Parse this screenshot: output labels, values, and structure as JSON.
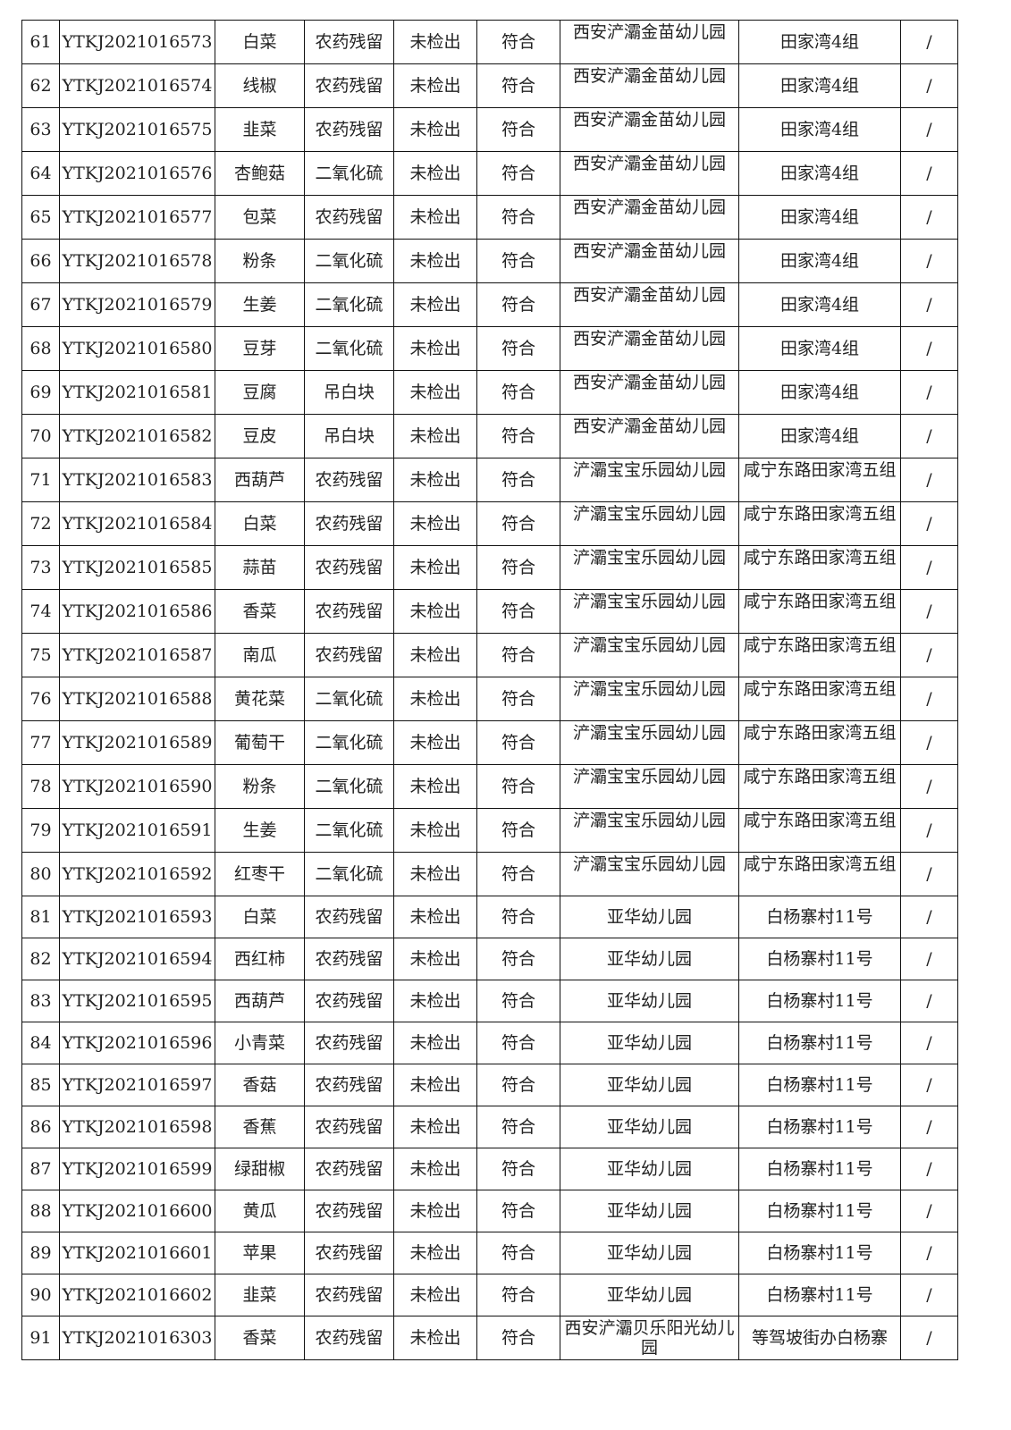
{
  "table": {
    "rows": [
      [
        "61",
        "YTKJ2021016573",
        "白菜",
        "农药残留",
        "未检出",
        "符合",
        "西安浐灞金苗幼儿园",
        "田家湾4组",
        "/"
      ],
      [
        "62",
        "YTKJ2021016574",
        "线椒",
        "农药残留",
        "未检出",
        "符合",
        "西安浐灞金苗幼儿园",
        "田家湾4组",
        "/"
      ],
      [
        "63",
        "YTKJ2021016575",
        "韭菜",
        "农药残留",
        "未检出",
        "符合",
        "西安浐灞金苗幼儿园",
        "田家湾4组",
        "/"
      ],
      [
        "64",
        "YTKJ2021016576",
        "杏鲍菇",
        "二氧化硫",
        "未检出",
        "符合",
        "西安浐灞金苗幼儿园",
        "田家湾4组",
        "/"
      ],
      [
        "65",
        "YTKJ2021016577",
        "包菜",
        "农药残留",
        "未检出",
        "符合",
        "西安浐灞金苗幼儿园",
        "田家湾4组",
        "/"
      ],
      [
        "66",
        "YTKJ2021016578",
        "粉条",
        "二氧化硫",
        "未检出",
        "符合",
        "西安浐灞金苗幼儿园",
        "田家湾4组",
        "/"
      ],
      [
        "67",
        "YTKJ2021016579",
        "生姜",
        "二氧化硫",
        "未检出",
        "符合",
        "西安浐灞金苗幼儿园",
        "田家湾4组",
        "/"
      ],
      [
        "68",
        "YTKJ2021016580",
        "豆芽",
        "二氧化硫",
        "未检出",
        "符合",
        "西安浐灞金苗幼儿园",
        "田家湾4组",
        "/"
      ],
      [
        "69",
        "YTKJ2021016581",
        "豆腐",
        "吊白块",
        "未检出",
        "符合",
        "西安浐灞金苗幼儿园",
        "田家湾4组",
        "/"
      ],
      [
        "70",
        "YTKJ2021016582",
        "豆皮",
        "吊白块",
        "未检出",
        "符合",
        "西安浐灞金苗幼儿园",
        "田家湾4组",
        "/"
      ],
      [
        "71",
        "YTKJ2021016583",
        "西葫芦",
        "农药残留",
        "未检出",
        "符合",
        "浐灞宝宝乐园幼儿园",
        "咸宁东路田家湾五组",
        "/"
      ],
      [
        "72",
        "YTKJ2021016584",
        "白菜",
        "农药残留",
        "未检出",
        "符合",
        "浐灞宝宝乐园幼儿园",
        "咸宁东路田家湾五组",
        "/"
      ],
      [
        "73",
        "YTKJ2021016585",
        "蒜苗",
        "农药残留",
        "未检出",
        "符合",
        "浐灞宝宝乐园幼儿园",
        "咸宁东路田家湾五组",
        "/"
      ],
      [
        "74",
        "YTKJ2021016586",
        "香菜",
        "农药残留",
        "未检出",
        "符合",
        "浐灞宝宝乐园幼儿园",
        "咸宁东路田家湾五组",
        "/"
      ],
      [
        "75",
        "YTKJ2021016587",
        "南瓜",
        "农药残留",
        "未检出",
        "符合",
        "浐灞宝宝乐园幼儿园",
        "咸宁东路田家湾五组",
        "/"
      ],
      [
        "76",
        "YTKJ2021016588",
        "黄花菜",
        "二氧化硫",
        "未检出",
        "符合",
        "浐灞宝宝乐园幼儿园",
        "咸宁东路田家湾五组",
        "/"
      ],
      [
        "77",
        "YTKJ2021016589",
        "葡萄干",
        "二氧化硫",
        "未检出",
        "符合",
        "浐灞宝宝乐园幼儿园",
        "咸宁东路田家湾五组",
        "/"
      ],
      [
        "78",
        "YTKJ2021016590",
        "粉条",
        "二氧化硫",
        "未检出",
        "符合",
        "浐灞宝宝乐园幼儿园",
        "咸宁东路田家湾五组",
        "/"
      ],
      [
        "79",
        "YTKJ2021016591",
        "生姜",
        "二氧化硫",
        "未检出",
        "符合",
        "浐灞宝宝乐园幼儿园",
        "咸宁东路田家湾五组",
        "/"
      ],
      [
        "80",
        "YTKJ2021016592",
        "红枣干",
        "二氧化硫",
        "未检出",
        "符合",
        "浐灞宝宝乐园幼儿园",
        "咸宁东路田家湾五组",
        "/"
      ],
      [
        "81",
        "YTKJ2021016593",
        "白菜",
        "农药残留",
        "未检出",
        "符合",
        "亚华幼儿园",
        "白杨寨村11号",
        "/"
      ],
      [
        "82",
        "YTKJ2021016594",
        "西红柿",
        "农药残留",
        "未检出",
        "符合",
        "亚华幼儿园",
        "白杨寨村11号",
        "/"
      ],
      [
        "83",
        "YTKJ2021016595",
        "西葫芦",
        "农药残留",
        "未检出",
        "符合",
        "亚华幼儿园",
        "白杨寨村11号",
        "/"
      ],
      [
        "84",
        "YTKJ2021016596",
        "小青菜",
        "农药残留",
        "未检出",
        "符合",
        "亚华幼儿园",
        "白杨寨村11号",
        "/"
      ],
      [
        "85",
        "YTKJ2021016597",
        "香菇",
        "农药残留",
        "未检出",
        "符合",
        "亚华幼儿园",
        "白杨寨村11号",
        "/"
      ],
      [
        "86",
        "YTKJ2021016598",
        "香蕉",
        "农药残留",
        "未检出",
        "符合",
        "亚华幼儿园",
        "白杨寨村11号",
        "/"
      ],
      [
        "87",
        "YTKJ2021016599",
        "绿甜椒",
        "农药残留",
        "未检出",
        "符合",
        "亚华幼儿园",
        "白杨寨村11号",
        "/"
      ],
      [
        "88",
        "YTKJ2021016600",
        "黄瓜",
        "农药残留",
        "未检出",
        "符合",
        "亚华幼儿园",
        "白杨寨村11号",
        "/"
      ],
      [
        "89",
        "YTKJ2021016601",
        "苹果",
        "农药残留",
        "未检出",
        "符合",
        "亚华幼儿园",
        "白杨寨村11号",
        "/"
      ],
      [
        "90",
        "YTKJ2021016602",
        "韭菜",
        "农药残留",
        "未检出",
        "符合",
        "亚华幼儿园",
        "白杨寨村11号",
        "/"
      ],
      [
        "91",
        "YTKJ2021016303",
        "香菜",
        "农药残留",
        "未检出",
        "符合",
        "西安浐灞贝乐阳光幼儿园",
        "等驾坡街办白杨寨",
        "/"
      ]
    ]
  }
}
